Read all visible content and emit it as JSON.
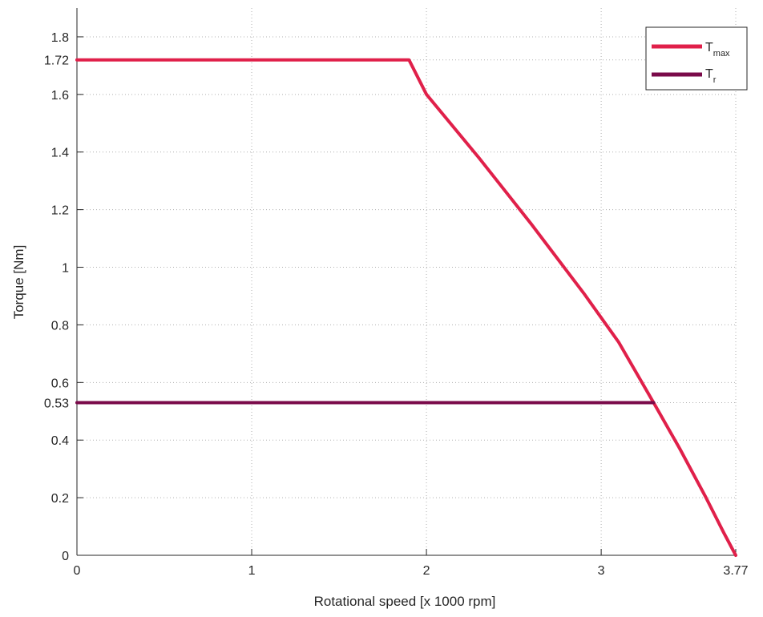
{
  "chart_data": {
    "type": "line",
    "xlabel": "Rotational speed [x 1000 rpm]",
    "ylabel": "Torque [Nm]",
    "xlim": [
      0,
      3.77
    ],
    "ylim": [
      0,
      1.9
    ],
    "xticks": [
      0,
      1,
      2,
      3,
      3.77
    ],
    "xtick_labels": [
      "0",
      "1",
      "2",
      "3",
      "3.77"
    ],
    "yticks": [
      0,
      0.2,
      0.4,
      0.53,
      0.6,
      0.8,
      1,
      1.2,
      1.4,
      1.6,
      1.72,
      1.8
    ],
    "ytick_labels": [
      "0",
      "0.2",
      "0.4",
      "0.53",
      "0.6",
      "0.8",
      "1",
      "1.2",
      "1.4",
      "1.6",
      "1.72",
      "1.8"
    ],
    "grid": true,
    "legend_position": "top-right",
    "series": [
      {
        "name": "T_max",
        "legend_main": "T",
        "legend_sub": "max",
        "color": "#e0204a",
        "x": [
          0,
          1.9,
          2.0,
          2.3,
          2.6,
          2.9,
          3.1,
          3.3,
          3.45,
          3.6,
          3.7,
          3.77
        ],
        "y": [
          1.72,
          1.72,
          1.6,
          1.38,
          1.15,
          0.91,
          0.74,
          0.53,
          0.37,
          0.2,
          0.08,
          0
        ]
      },
      {
        "name": "T_r",
        "legend_main": "T",
        "legend_sub": "r",
        "color": "#7a0a4a",
        "x": [
          0,
          3.3
        ],
        "y": [
          0.53,
          0.53
        ]
      }
    ]
  }
}
